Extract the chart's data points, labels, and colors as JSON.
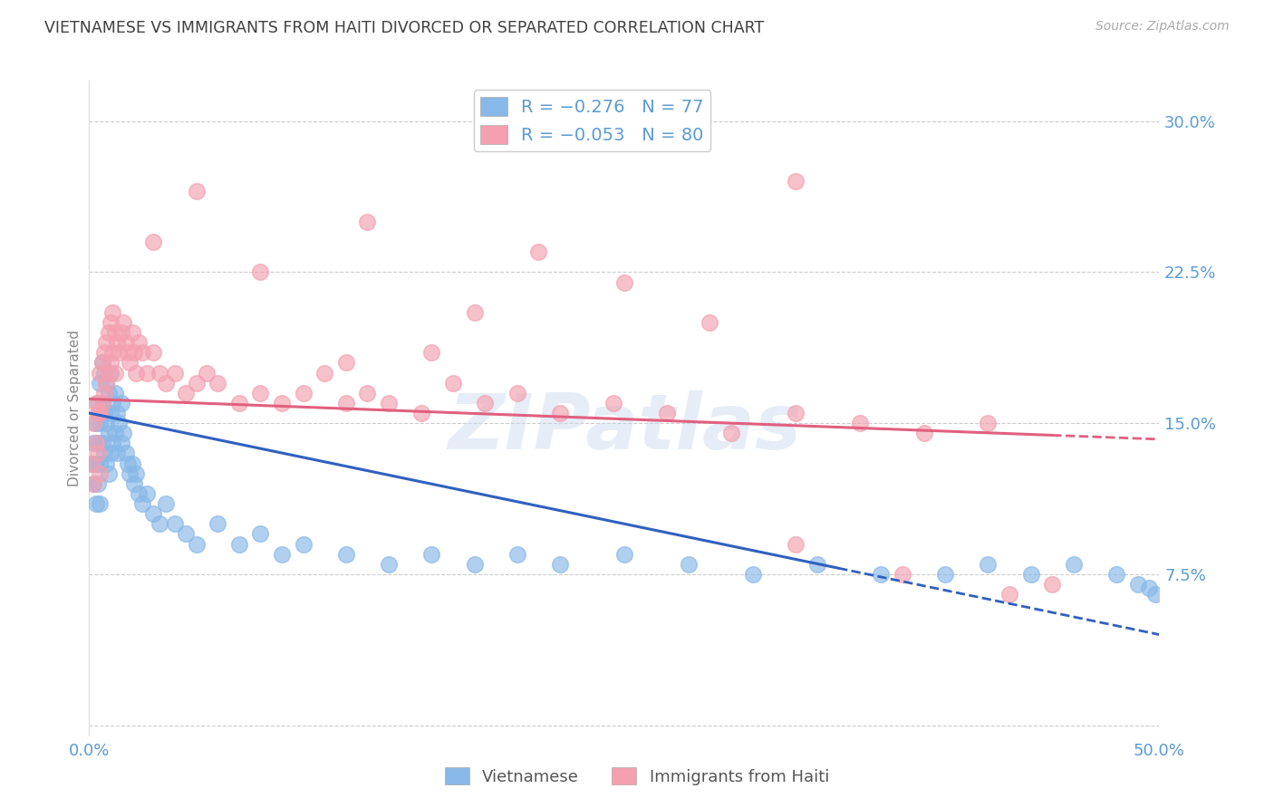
{
  "title": "VIETNAMESE VS IMMIGRANTS FROM HAITI DIVORCED OR SEPARATED CORRELATION CHART",
  "source": "Source: ZipAtlas.com",
  "ylabel": "Divorced or Separated",
  "ytick_labels": [
    "30.0%",
    "22.5%",
    "15.0%",
    "7.5%"
  ],
  "ytick_values": [
    0.3,
    0.225,
    0.15,
    0.075
  ],
  "ylim": [
    -0.005,
    0.32
  ],
  "xlim": [
    0.0,
    0.5
  ],
  "vietnamese_color": "#88b8e8",
  "haiti_color": "#f4a0b0",
  "vietnamese_line_color": "#3060c0",
  "haiti_line_color": "#e06080",
  "watermark": "ZIPatlas",
  "background_color": "#ffffff",
  "grid_color": "#cccccc",
  "axis_label_color": "#5b9bd5",
  "title_color": "#404040",
  "vietnamese_R": -0.276,
  "vietnamese_N": 77,
  "haiti_R": -0.053,
  "haiti_N": 80,
  "viet_x": [
    0.001,
    0.002,
    0.002,
    0.003,
    0.003,
    0.003,
    0.004,
    0.004,
    0.004,
    0.005,
    0.005,
    0.005,
    0.005,
    0.006,
    0.006,
    0.006,
    0.007,
    0.007,
    0.007,
    0.008,
    0.008,
    0.008,
    0.009,
    0.009,
    0.009,
    0.01,
    0.01,
    0.01,
    0.011,
    0.011,
    0.012,
    0.012,
    0.013,
    0.013,
    0.014,
    0.015,
    0.015,
    0.016,
    0.017,
    0.018,
    0.019,
    0.02,
    0.021,
    0.022,
    0.023,
    0.025,
    0.027,
    0.03,
    0.033,
    0.036,
    0.04,
    0.045,
    0.05,
    0.06,
    0.07,
    0.08,
    0.09,
    0.1,
    0.12,
    0.14,
    0.16,
    0.18,
    0.2,
    0.22,
    0.25,
    0.28,
    0.31,
    0.34,
    0.37,
    0.4,
    0.42,
    0.44,
    0.46,
    0.48,
    0.49,
    0.495,
    0.498
  ],
  "viet_y": [
    0.13,
    0.14,
    0.12,
    0.15,
    0.13,
    0.11,
    0.16,
    0.14,
    0.12,
    0.17,
    0.15,
    0.13,
    0.11,
    0.18,
    0.16,
    0.14,
    0.175,
    0.155,
    0.135,
    0.17,
    0.15,
    0.13,
    0.165,
    0.145,
    0.125,
    0.175,
    0.155,
    0.135,
    0.16,
    0.14,
    0.165,
    0.145,
    0.155,
    0.135,
    0.15,
    0.16,
    0.14,
    0.145,
    0.135,
    0.13,
    0.125,
    0.13,
    0.12,
    0.125,
    0.115,
    0.11,
    0.115,
    0.105,
    0.1,
    0.11,
    0.1,
    0.095,
    0.09,
    0.1,
    0.09,
    0.095,
    0.085,
    0.09,
    0.085,
    0.08,
    0.085,
    0.08,
    0.085,
    0.08,
    0.085,
    0.08,
    0.075,
    0.08,
    0.075,
    0.075,
    0.08,
    0.075,
    0.08,
    0.075,
    0.07,
    0.068,
    0.065
  ],
  "haiti_x": [
    0.001,
    0.002,
    0.002,
    0.003,
    0.003,
    0.004,
    0.004,
    0.005,
    0.005,
    0.005,
    0.006,
    0.006,
    0.007,
    0.007,
    0.008,
    0.008,
    0.009,
    0.009,
    0.01,
    0.01,
    0.011,
    0.011,
    0.012,
    0.012,
    0.013,
    0.014,
    0.015,
    0.016,
    0.017,
    0.018,
    0.019,
    0.02,
    0.021,
    0.022,
    0.023,
    0.025,
    0.027,
    0.03,
    0.033,
    0.036,
    0.04,
    0.045,
    0.05,
    0.055,
    0.06,
    0.07,
    0.08,
    0.09,
    0.1,
    0.11,
    0.12,
    0.13,
    0.14,
    0.155,
    0.17,
    0.185,
    0.2,
    0.22,
    0.245,
    0.27,
    0.3,
    0.33,
    0.36,
    0.39,
    0.42,
    0.03,
    0.05,
    0.08,
    0.13,
    0.18,
    0.33,
    0.38,
    0.43,
    0.29,
    0.25,
    0.21,
    0.16,
    0.12,
    0.33,
    0.45
  ],
  "haiti_y": [
    0.13,
    0.15,
    0.12,
    0.16,
    0.14,
    0.155,
    0.135,
    0.175,
    0.155,
    0.125,
    0.18,
    0.16,
    0.185,
    0.165,
    0.19,
    0.17,
    0.195,
    0.175,
    0.2,
    0.18,
    0.205,
    0.185,
    0.195,
    0.175,
    0.19,
    0.185,
    0.195,
    0.2,
    0.19,
    0.185,
    0.18,
    0.195,
    0.185,
    0.175,
    0.19,
    0.185,
    0.175,
    0.185,
    0.175,
    0.17,
    0.175,
    0.165,
    0.17,
    0.175,
    0.17,
    0.16,
    0.165,
    0.16,
    0.165,
    0.175,
    0.16,
    0.165,
    0.16,
    0.155,
    0.17,
    0.16,
    0.165,
    0.155,
    0.16,
    0.155,
    0.145,
    0.155,
    0.15,
    0.145,
    0.15,
    0.24,
    0.265,
    0.225,
    0.25,
    0.205,
    0.09,
    0.075,
    0.065,
    0.2,
    0.22,
    0.235,
    0.185,
    0.18,
    0.27,
    0.07
  ]
}
